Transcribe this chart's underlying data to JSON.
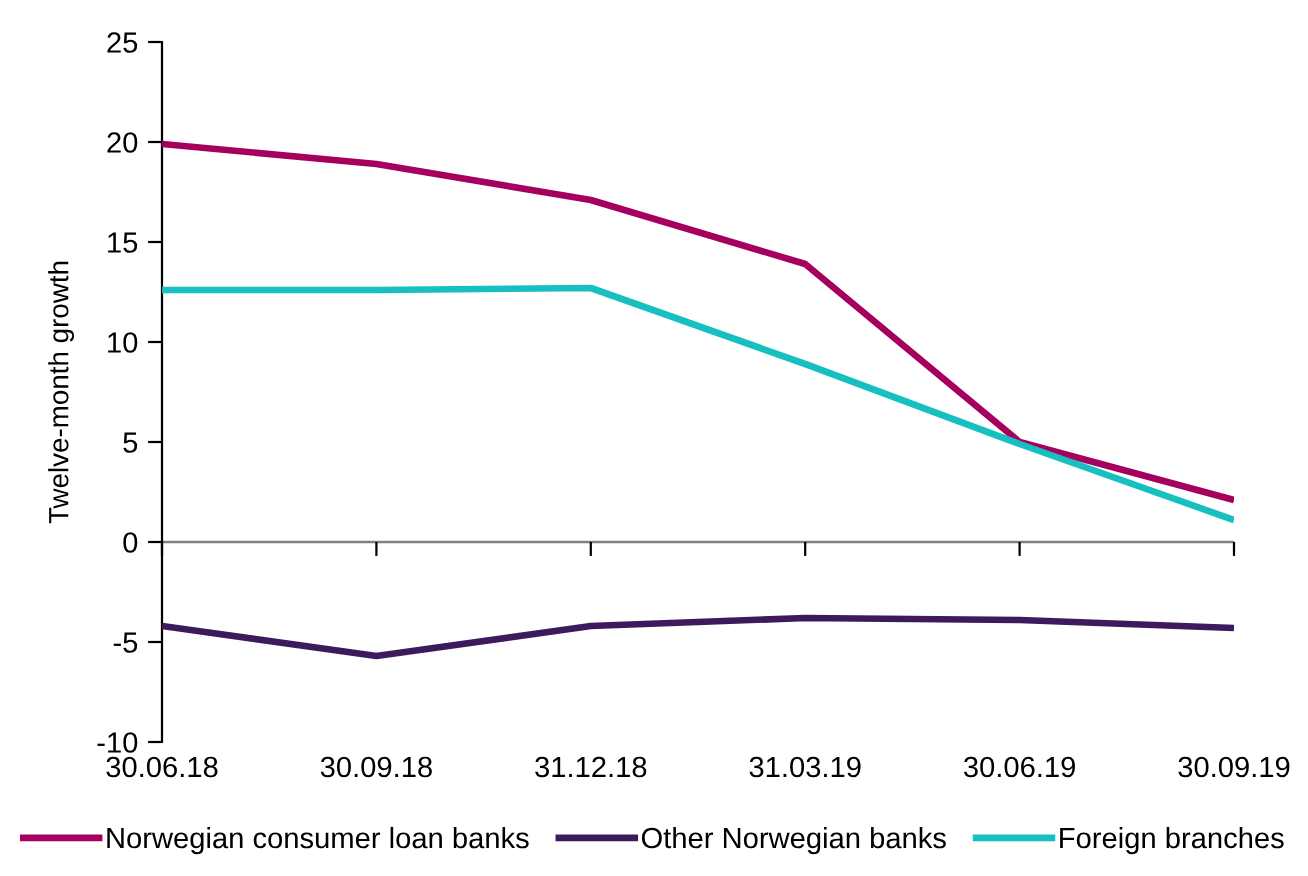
{
  "chart_data": {
    "type": "line",
    "ylabel": "Twelve-month growth",
    "categories": [
      "30.06.18",
      "30.09.18",
      "31.12.18",
      "31.03.19",
      "30.06.19",
      "30.09.19"
    ],
    "series": [
      {
        "name": "Norwegian consumer loan banks",
        "color": "#a6005f",
        "values": [
          19.9,
          18.9,
          17.1,
          13.9,
          5.0,
          2.1
        ]
      },
      {
        "name": "Other Norwegian banks",
        "color": "#3d1a5b",
        "values": [
          -4.2,
          -5.7,
          -4.2,
          -3.8,
          -3.9,
          -4.3
        ]
      },
      {
        "name": "Foreign branches",
        "color": "#17bfc0",
        "values": [
          12.6,
          12.6,
          12.7,
          8.9,
          4.9,
          1.1
        ]
      }
    ],
    "ylim": [
      -10,
      25
    ],
    "yticks": [
      -10,
      -5,
      0,
      5,
      10,
      15,
      20,
      25
    ],
    "ref_lines": [
      {
        "axis": "y",
        "value": 0,
        "color": "#808080"
      }
    ],
    "legend": "bottom",
    "marker": "none",
    "line_style": "solid"
  }
}
